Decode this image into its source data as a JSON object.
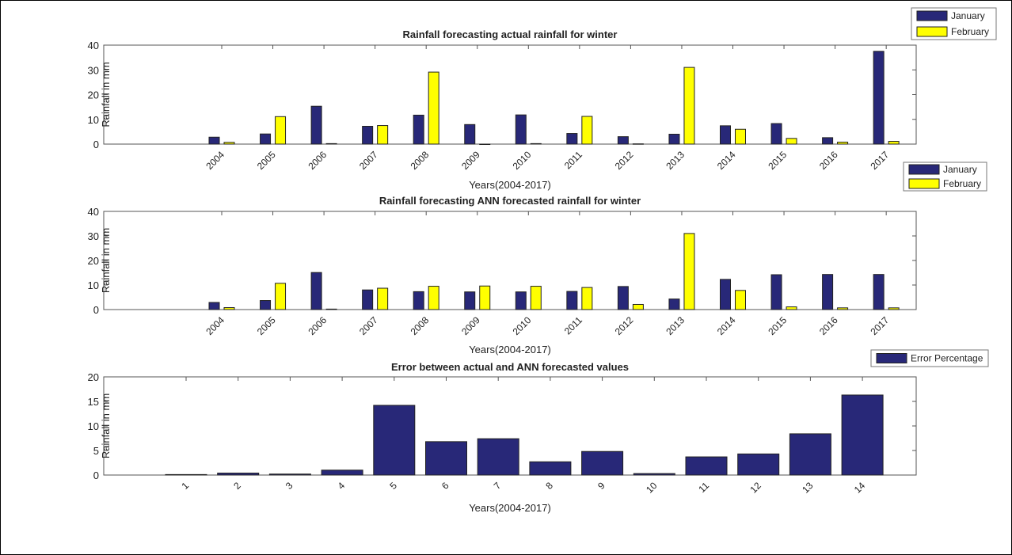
{
  "colors": {
    "january": "#282878",
    "february": "#ffff00",
    "error": "#282878",
    "axis": "#555555"
  },
  "chart_data": [
    {
      "type": "bar",
      "title": "Rainfall forecasting actual rainfall for winter",
      "xlabel": "Years(2004-2017)",
      "ylabel": "Rainfall in mm",
      "categories": [
        "2004",
        "2005",
        "2006",
        "2007",
        "2008",
        "2009",
        "2010",
        "2011",
        "2012",
        "2013",
        "2014",
        "2015",
        "2016",
        "2017"
      ],
      "series": [
        {
          "name": "January",
          "values": [
            2.8,
            4.1,
            15.3,
            7.2,
            11.7,
            7.9,
            11.8,
            4.3,
            3.0,
            4.0,
            7.4,
            8.3,
            2.6,
            37.5
          ]
        },
        {
          "name": "February",
          "values": [
            0.7,
            11.1,
            0.2,
            7.5,
            29.1,
            0.0,
            0.2,
            11.2,
            0.1,
            31.0,
            6.0,
            2.3,
            0.8,
            1.1
          ]
        }
      ],
      "ylim": [
        0,
        40
      ],
      "yticks": [
        "0",
        "10",
        "20",
        "30",
        "40"
      ],
      "legend": "top-right"
    },
    {
      "type": "bar",
      "title": "Rainfall forecasting ANN forecasted rainfall for winter",
      "xlabel": "Years(2004-2017)",
      "ylabel": "Rainfall in mm",
      "categories": [
        "2004",
        "2005",
        "2006",
        "2007",
        "2008",
        "2009",
        "2010",
        "2011",
        "2012",
        "2013",
        "2014",
        "2015",
        "2016",
        "2017"
      ],
      "series": [
        {
          "name": "January",
          "values": [
            2.9,
            3.7,
            15.1,
            8.0,
            7.3,
            7.2,
            7.2,
            7.4,
            9.4,
            4.3,
            12.3,
            14.2,
            14.3,
            14.3
          ]
        },
        {
          "name": "February",
          "values": [
            0.8,
            10.7,
            0.2,
            8.7,
            9.5,
            9.6,
            9.5,
            9.0,
            2.1,
            31.0,
            7.8,
            1.1,
            0.7,
            0.7
          ]
        }
      ],
      "ylim": [
        0,
        40
      ],
      "yticks": [
        "0",
        "10",
        "20",
        "30",
        "40"
      ],
      "legend": "top-right"
    },
    {
      "type": "bar",
      "title": "Error between actual and ANN forecasted values",
      "xlabel": "Years(2004-2017)",
      "ylabel": "Rainfall in mm",
      "categories": [
        "1",
        "2",
        "3",
        "4",
        "5",
        "6",
        "7",
        "8",
        "9",
        "10",
        "11",
        "12",
        "13",
        "14"
      ],
      "series": [
        {
          "name": "Error Percentage",
          "values": [
            0.1,
            0.4,
            0.2,
            1.0,
            14.2,
            6.8,
            7.4,
            2.7,
            4.8,
            0.3,
            3.7,
            4.3,
            8.4,
            16.3
          ]
        }
      ],
      "ylim": [
        0,
        20
      ],
      "yticks": [
        "0",
        "5",
        "10",
        "15",
        "20"
      ],
      "legend": "top-right"
    }
  ]
}
